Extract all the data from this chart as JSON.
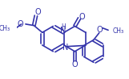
{
  "bg_color": "#ffffff",
  "line_color": "#3333aa",
  "line_width": 1.2,
  "figsize": [
    1.61,
    0.98
  ],
  "dpi": 100,
  "xlim": [
    0,
    161
  ],
  "ylim": [
    0,
    98
  ]
}
